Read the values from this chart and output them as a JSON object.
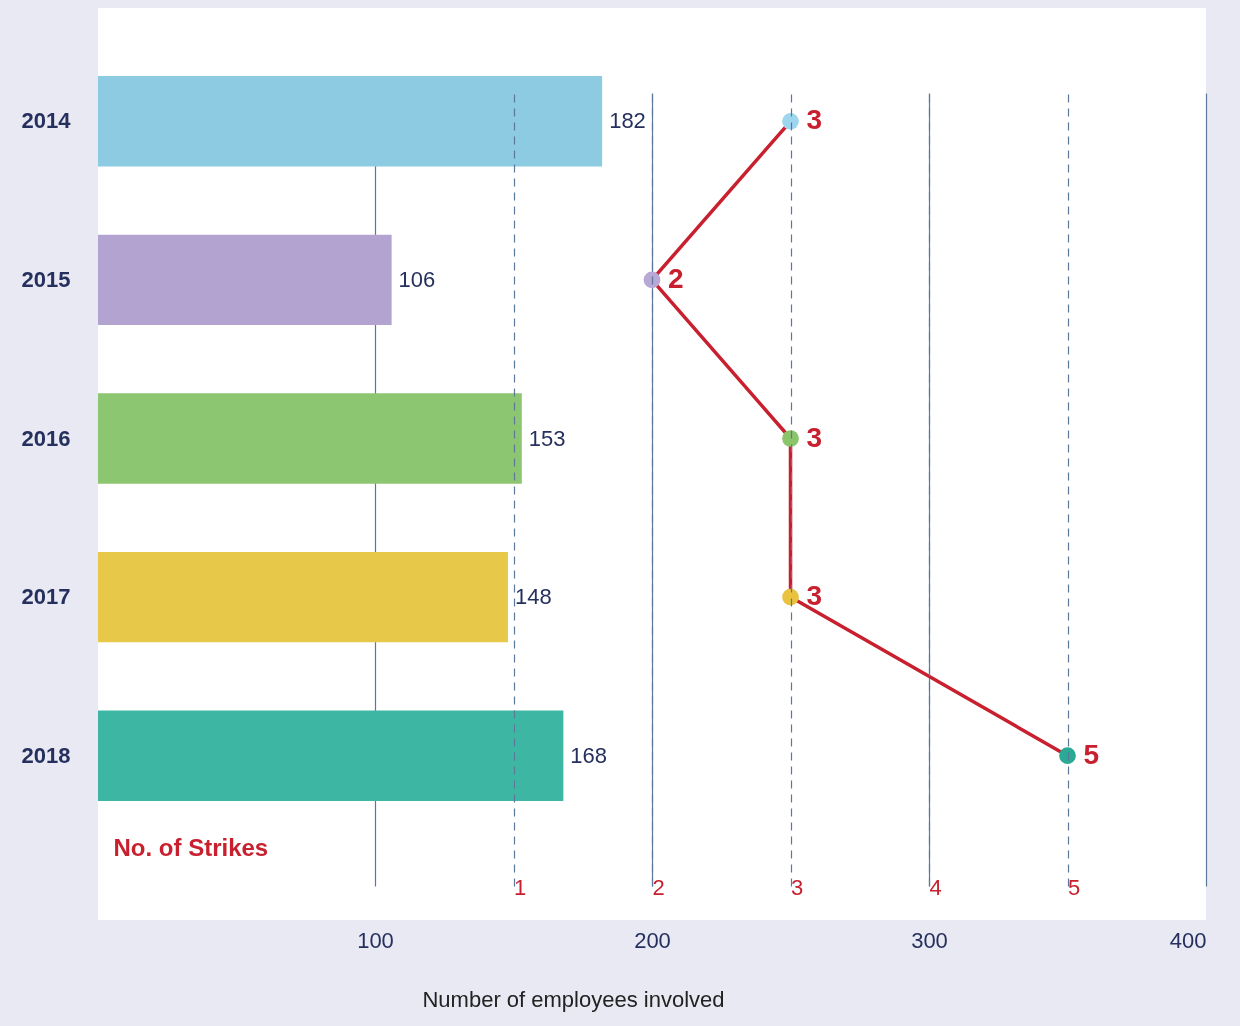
{
  "chart_data": {
    "type": "bar",
    "orientation": "horizontal",
    "xlabel": "Number of employees involved",
    "x2label": "No. of Strikes",
    "categories": [
      "2014",
      "2015",
      "2016",
      "2017",
      "2018"
    ],
    "series": [
      {
        "colors": [
          "#8ccbe2",
          "#b2a3d0",
          "#8cc670",
          "#e8c848",
          "#3db7a4"
        ],
        "values": [
          182,
          106,
          153,
          148,
          168
        ]
      },
      {
        "type": "line",
        "axis": "x2",
        "color": "#c8202f",
        "marker": "circle",
        "colors": [
          "#9fd6ef",
          "#b7a8d6",
          "#8cc46c",
          "#e9c240",
          "#2aa995"
        ],
        "values": [
          3,
          2,
          3,
          3,
          5
        ]
      }
    ],
    "xlim": [
      0,
      400
    ],
    "xticks": [
      100,
      200,
      300,
      400
    ],
    "x2lim": [
      -2,
      6
    ],
    "x2ticks": [
      1,
      2,
      3,
      4,
      5
    ],
    "grid": true,
    "data_labels": true
  }
}
